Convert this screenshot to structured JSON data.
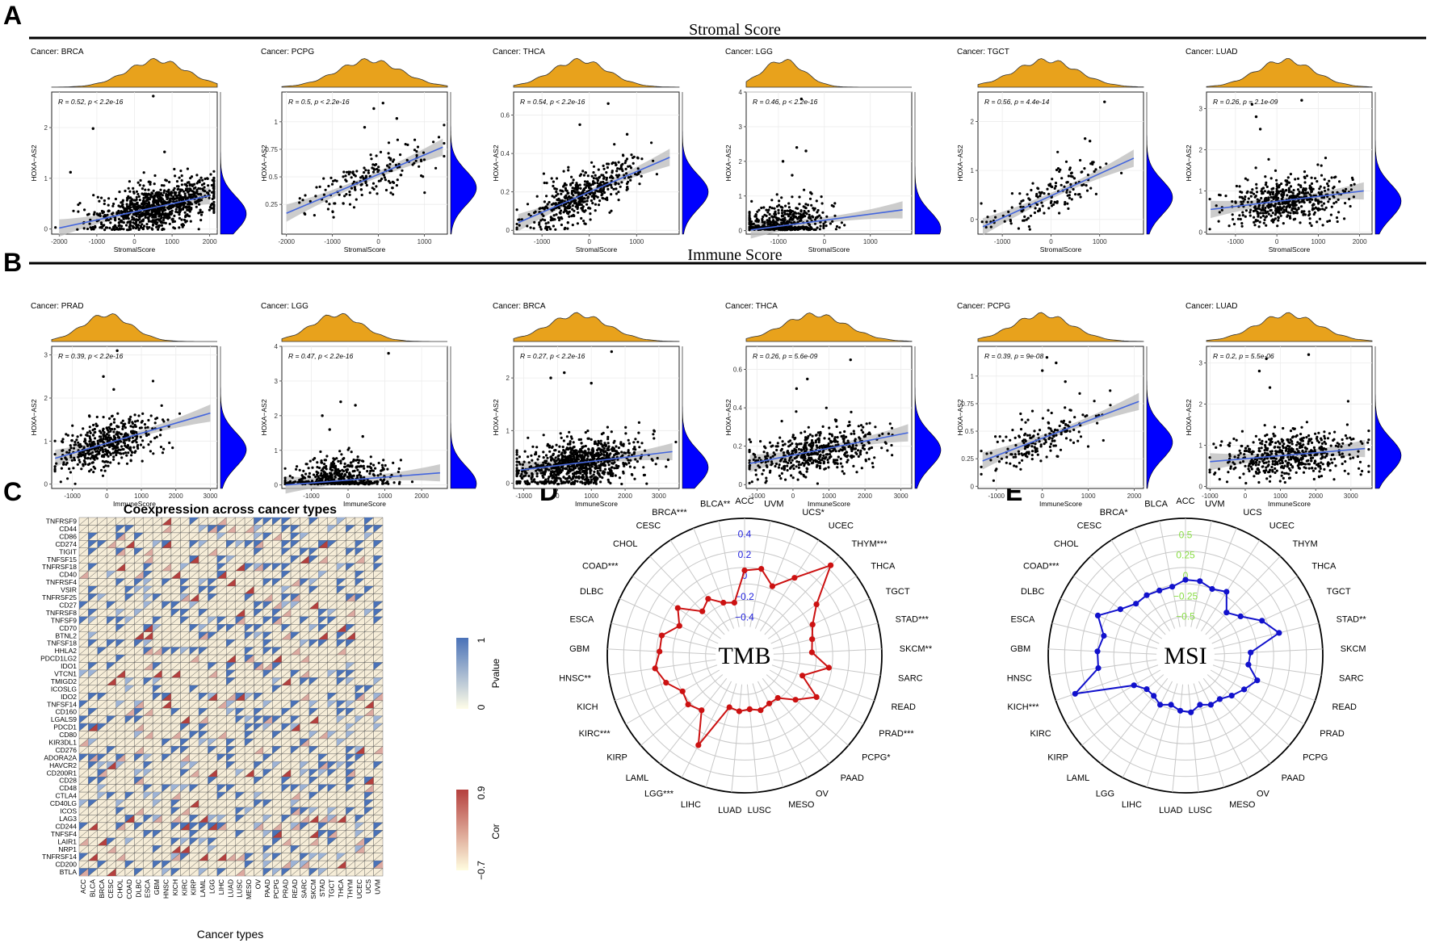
{
  "panels": {
    "a": "A",
    "b": "B",
    "c": "C",
    "d": "D",
    "e": "E"
  },
  "section_a_title": "Stromal Score",
  "section_b_title": "Immune Score",
  "colors": {
    "density_top": "#E8A21C",
    "density_side": "#0000FF",
    "fit_line": "#4466DD",
    "ci_band": "#BBBBBB",
    "tmb_line": "#CC1111",
    "msi_line": "#1111CC",
    "tmb_radial": "#2222DD",
    "msi_radial": "#88DD44",
    "heat_blue": "#4A72B8",
    "heat_red": "#B5403E",
    "heat_cream": "#F6EDD8"
  },
  "chart_data": [
    {
      "type": "scatter",
      "id": "a1",
      "section": "Stromal Score",
      "cancer": "Cancer: BRCA",
      "stat": "R = 0.52, p < 2.2e-16",
      "xlabel": "StromalScore",
      "ylabel": "HOXA−AS2",
      "xlim": [
        -2200,
        2200
      ],
      "ylim": [
        -0.1,
        2.7
      ],
      "xticks": [
        -2000,
        -1000,
        0,
        1000,
        2000
      ],
      "yticks": [
        0,
        1,
        2
      ],
      "fit": [
        [
          -2000,
          0.02
        ],
        [
          2000,
          0.66
        ]
      ],
      "npoints": 950,
      "cx": 600,
      "sx": 800,
      "cy": 0.3,
      "outliers": [
        [
          500,
          2.62
        ],
        [
          -1100,
          1.98
        ],
        [
          800,
          1.52
        ],
        [
          -1700,
          1.12
        ]
      ]
    },
    {
      "type": "scatter",
      "id": "a2",
      "section": "Stromal Score",
      "cancer": "Cancer: PCPG",
      "stat": "R = 0.5, p < 2.2e-16",
      "xlabel": "StromalScore",
      "ylabel": "HOXA−AS2",
      "xlim": [
        -2100,
        1500
      ],
      "ylim": [
        -0.02,
        1.27
      ],
      "xticks": [
        -2000,
        -1000,
        0,
        1000
      ],
      "yticks": [
        0.25,
        0.5,
        0.75,
        1.0
      ],
      "fit": [
        [
          -2000,
          0.17
        ],
        [
          1400,
          0.77
        ]
      ],
      "npoints": 180,
      "cx": -200,
      "sx": 700,
      "cy": 0.4,
      "outliers": [
        [
          100,
          1.17
        ],
        [
          -100,
          1.12
        ],
        [
          400,
          1.03
        ],
        [
          -300,
          0.95
        ]
      ]
    },
    {
      "type": "scatter",
      "id": "a3",
      "section": "Stromal Score",
      "cancer": "Cancer: THCA",
      "stat": "R = 0.54, p < 2.2e-16",
      "xlabel": "StromalScore",
      "ylabel": "HOXA−AS2",
      "xlim": [
        -1600,
        1900
      ],
      "ylim": [
        -0.02,
        0.72
      ],
      "xticks": [
        -1000,
        0,
        1000
      ],
      "yticks": [
        0,
        0.2,
        0.4,
        0.6
      ],
      "fit": [
        [
          -1500,
          0.04
        ],
        [
          1700,
          0.38
        ]
      ],
      "npoints": 500,
      "cx": -200,
      "sx": 600,
      "cy": 0.2,
      "outliers": [
        [
          400,
          0.66
        ],
        [
          -200,
          0.55
        ],
        [
          800,
          0.5
        ]
      ]
    },
    {
      "type": "scatter",
      "id": "a4",
      "section": "Stromal Score",
      "cancer": "Cancer: LGG",
      "stat": "R = 0.46, p < 2.2e-16",
      "xlabel": "StromalScore",
      "ylabel": "HOXA−AS2",
      "xlim": [
        -1700,
        1900
      ],
      "ylim": [
        -0.1,
        4.0
      ],
      "xticks": [
        -1000,
        0,
        1000
      ],
      "yticks": [
        0,
        1,
        2,
        3,
        4
      ],
      "fit": [
        [
          -1600,
          0.02
        ],
        [
          1700,
          0.6
        ]
      ],
      "npoints": 520,
      "cx": -900,
      "sx": 450,
      "cy": 0.05,
      "outliers": [
        [
          -500,
          3.8
        ],
        [
          -600,
          2.4
        ],
        [
          -400,
          2.3
        ],
        [
          -900,
          2.0
        ],
        [
          -700,
          1.6
        ],
        [
          -300,
          1.1
        ]
      ]
    },
    {
      "type": "scatter",
      "id": "a5",
      "section": "Stromal Score",
      "cancer": "Cancer: TGCT",
      "stat": "R = 0.56, p = 4.4e-14",
      "xlabel": "StromalScore",
      "ylabel": "HOXA−AS2",
      "xlim": [
        -1500,
        1900
      ],
      "ylim": [
        -0.3,
        2.6
      ],
      "xticks": [
        -1000,
        0,
        1000
      ],
      "yticks": [
        0,
        1,
        2
      ],
      "fit": [
        [
          -1400,
          -0.15
        ],
        [
          1700,
          1.25
        ]
      ],
      "npoints": 150,
      "cx": -100,
      "sx": 650,
      "cy": 0.45,
      "outliers": [
        [
          1100,
          2.4
        ],
        [
          700,
          1.65
        ],
        [
          800,
          1.6
        ]
      ]
    },
    {
      "type": "scatter",
      "id": "a6",
      "section": "Stromal Score",
      "cancer": "Cancer: LUAD",
      "stat": "R = 0.26, p = 2.1e-09",
      "xlabel": "StromalScore",
      "ylabel": "HOXA−AS2",
      "xlim": [
        -1700,
        2300
      ],
      "ylim": [
        -0.05,
        3.4
      ],
      "xticks": [
        -1000,
        0,
        1000,
        2000
      ],
      "yticks": [
        0,
        1,
        2,
        3
      ],
      "fit": [
        [
          -1600,
          0.55
        ],
        [
          2100,
          1.0
        ]
      ],
      "npoints": 520,
      "cx": 200,
      "sx": 700,
      "cy": 0.75,
      "outliers": [
        [
          -600,
          3.1
        ],
        [
          600,
          3.2
        ],
        [
          -500,
          2.8
        ],
        [
          -400,
          2.5
        ]
      ]
    },
    {
      "type": "scatter",
      "id": "b1",
      "section": "Immune Score",
      "cancer": "Cancer: PRAD",
      "stat": "R = 0.39, p < 2.2e-16",
      "xlabel": "ImmuneScore",
      "ylabel": "HOXA−AS2",
      "xlim": [
        -1600,
        3200
      ],
      "ylim": [
        -0.1,
        3.2
      ],
      "xticks": [
        -1000,
        0,
        1000,
        2000,
        3000
      ],
      "yticks": [
        0,
        1,
        2,
        3
      ],
      "fit": [
        [
          -1500,
          0.6
        ],
        [
          3000,
          1.65
        ]
      ],
      "npoints": 480,
      "cx": 0,
      "sx": 700,
      "cy": 0.8,
      "outliers": [
        [
          300,
          3.1
        ],
        [
          -100,
          2.5
        ],
        [
          200,
          2.2
        ]
      ]
    },
    {
      "type": "scatter",
      "id": "b2",
      "section": "Immune Score",
      "cancer": "Cancer: LGG",
      "stat": "R = 0.47, p < 2.2e-16",
      "xlabel": "ImmuneScore",
      "ylabel": "HOXA−AS2",
      "xlim": [
        -1800,
        2700
      ],
      "ylim": [
        -0.1,
        4.0
      ],
      "xticks": [
        -1000,
        0,
        1000,
        2000
      ],
      "yticks": [
        0,
        1,
        2,
        3,
        4
      ],
      "fit": [
        [
          -1700,
          0.0
        ],
        [
          2500,
          0.35
        ]
      ],
      "npoints": 520,
      "cx": -300,
      "sx": 700,
      "cy": 0.04,
      "outliers": [
        [
          1100,
          3.8
        ],
        [
          -200,
          2.4
        ],
        [
          200,
          2.3
        ],
        [
          -700,
          2.0
        ],
        [
          -500,
          1.6
        ],
        [
          400,
          1.4
        ]
      ]
    },
    {
      "type": "scatter",
      "id": "b3",
      "section": "Immune Score",
      "cancer": "Cancer: BRCA",
      "stat": "R = 0.27, p < 2.2e-16",
      "xlabel": "ImmuneScore",
      "ylabel": "HOXA−AS2",
      "xlim": [
        -1300,
        3600
      ],
      "ylim": [
        -0.1,
        2.6
      ],
      "xticks": [
        -1000,
        0,
        1000,
        2000,
        3000
      ],
      "yticks": [
        0,
        1,
        2
      ],
      "fit": [
        [
          -1100,
          0.25
        ],
        [
          3400,
          0.6
        ]
      ],
      "npoints": 950,
      "cx": 600,
      "sx": 900,
      "cy": 0.3,
      "outliers": [
        [
          1600,
          2.5
        ],
        [
          200,
          2.1
        ],
        [
          -200,
          2.0
        ],
        [
          1000,
          1.9
        ]
      ]
    },
    {
      "type": "scatter",
      "id": "b4",
      "section": "Immune Score",
      "cancer": "Cancer: THCA",
      "stat": "R = 0.26, p = 5.6e-09",
      "xlabel": "ImmuneScore",
      "ylabel": "HOXA−AS2",
      "xlim": [
        -1300,
        3300
      ],
      "ylim": [
        -0.02,
        0.72
      ],
      "xticks": [
        -1000,
        0,
        1000,
        2000,
        3000
      ],
      "yticks": [
        0,
        0.2,
        0.4,
        0.6
      ],
      "fit": [
        [
          -1200,
          0.11
        ],
        [
          3200,
          0.27
        ]
      ],
      "npoints": 500,
      "cx": 600,
      "sx": 900,
      "cy": 0.18,
      "outliers": [
        [
          1600,
          0.65
        ],
        [
          400,
          0.55
        ],
        [
          100,
          0.5
        ]
      ]
    },
    {
      "type": "scatter",
      "id": "b5",
      "section": "Immune Score",
      "cancer": "Cancer: PCPG",
      "stat": "R = 0.39, p = 9e-08",
      "xlabel": "ImmuneScore",
      "ylabel": "HOXA−AS2",
      "xlim": [
        -1400,
        2200
      ],
      "ylim": [
        -0.02,
        1.27
      ],
      "xticks": [
        -1000,
        0,
        1000,
        2000
      ],
      "yticks": [
        0.0,
        0.25,
        0.5,
        0.75,
        1.0
      ],
      "fit": [
        [
          -1300,
          0.23
        ],
        [
          2100,
          0.77
        ]
      ],
      "npoints": 180,
      "cx": 0,
      "sx": 650,
      "cy": 0.4,
      "outliers": [
        [
          100,
          1.17
        ],
        [
          300,
          1.12
        ],
        [
          0,
          1.05
        ],
        [
          500,
          0.95
        ]
      ]
    },
    {
      "type": "scatter",
      "id": "b6",
      "section": "Immune Score",
      "cancer": "Cancer: LUAD",
      "stat": "R = 0.2, p = 5.5e-06",
      "xlabel": "ImmuneScore",
      "ylabel": "HOXA−AS2",
      "xlim": [
        -1100,
        3600
      ],
      "ylim": [
        -0.05,
        3.4
      ],
      "xticks": [
        -1000,
        0,
        1000,
        2000,
        3000
      ],
      "yticks": [
        0,
        1,
        2,
        3
      ],
      "fit": [
        [
          -1000,
          0.6
        ],
        [
          3400,
          0.92
        ]
      ],
      "npoints": 520,
      "cx": 1200,
      "sx": 900,
      "cy": 0.75,
      "outliers": [
        [
          600,
          3.1
        ],
        [
          1800,
          3.2
        ],
        [
          400,
          2.8
        ],
        [
          700,
          2.4
        ]
      ]
    },
    {
      "type": "heatmap",
      "id": "c",
      "title": "Coexpression across cancer types",
      "xlabel": "Cancer types",
      "rows": [
        "TNFRSF9",
        "CD44",
        "CD86",
        "CD274",
        "TIGIT",
        "TNFSF15",
        "TNFRSF18",
        "CD40",
        "TNFRSF4",
        "VSIR",
        "TNFRSF25",
        "CD27",
        "TNFRSF8",
        "TNFSF9",
        "CD70",
        "BTNL2",
        "TNFSF18",
        "HHLA2",
        "PDCD1LG2",
        "IDO1",
        "VTCN1",
        "TMIGD2",
        "ICOSLG",
        "IDO2",
        "TNFSF14",
        "CD160",
        "LGALS9",
        "PDCD1",
        "CD80",
        "KIR3DL1",
        "CD276",
        "ADORA2A",
        "HAVCR2",
        "CD200R1",
        "CD28",
        "CD48",
        "CTLA4",
        "CD40LG",
        "ICOS",
        "LAG3",
        "CD244",
        "TNFSF4",
        "LAIR1",
        "NRP1",
        "TNFRSF14",
        "CD200",
        "BTLA"
      ],
      "cols": [
        "ACC",
        "BLCA",
        "BRCA",
        "CESC",
        "CHOL",
        "COAD",
        "DLBC",
        "ESCA",
        "GBM",
        "HNSC",
        "KICH",
        "KIRC",
        "KIRP",
        "LAML",
        "LGG",
        "LIHC",
        "LUAD",
        "LUSC",
        "MESO",
        "OV",
        "PAAD",
        "PCPG",
        "PRAD",
        "READ",
        "SARC",
        "SKCM",
        "STAD",
        "TGCT",
        "THCA",
        "THYM",
        "UCEC",
        "UCS",
        "UVM"
      ],
      "legend_pvalue": {
        "title": "Pvalue",
        "ticks": [
          "1",
          "0"
        ]
      },
      "legend_cor": {
        "title": "Cor",
        "ticks": [
          "0.9",
          "−0.7"
        ]
      }
    },
    {
      "type": "radar",
      "id": "d",
      "center_label": "TMB",
      "radial_ticks": [
        "0.4",
        "0.2",
        "0",
        "−0.2",
        "−0.4"
      ],
      "rmin": -0.55,
      "rmax": 0.55,
      "categories": [
        "ACC",
        "UVM",
        "UCS*",
        "UCEC",
        "THYM***",
        "THCA",
        "TGCT",
        "STAD***",
        "SKCM**",
        "SARC",
        "READ",
        "PRAD***",
        "PCPG*",
        "PAAD",
        "OV",
        "MESO",
        "LUSC",
        "LUAD",
        "LIHC",
        "LGG***",
        "LAML",
        "KIRP",
        "KIRC***",
        "KICH",
        "HNSC**",
        "GBM",
        "ESCA",
        "DLBC",
        "COAD***",
        "CHOL",
        "CESC",
        "BRCA***",
        "BLCA**"
      ],
      "values": [
        0.05,
        0.08,
        -0.05,
        0.12,
        0.43,
        0.08,
        -0.05,
        -0.1,
        -0.12,
        0.05,
        -0.18,
        0.03,
        -0.12,
        -0.25,
        -0.25,
        -0.22,
        -0.25,
        -0.23,
        -0.25,
        0.2,
        -0.1,
        -0.05,
        -0.08,
        0.03,
        0.1,
        0.05,
        0.05,
        -0.08,
        0.02,
        -0.18,
        -0.12,
        -0.22,
        -0.25
      ]
    },
    {
      "type": "radar",
      "id": "e",
      "center_label": "MSI",
      "radial_ticks": [
        "0.5",
        "0.25",
        "0",
        "−0.25",
        "−0.5"
      ],
      "rmin": -0.7,
      "rmax": 0.7,
      "categories": [
        "ACC",
        "UVM",
        "UCS",
        "UCEC",
        "THYM",
        "THCA",
        "TGCT",
        "STAD**",
        "SKCM",
        "SARC",
        "READ",
        "PRAD",
        "PCPG",
        "PAAD",
        "OV",
        "MESO",
        "LUSC",
        "LUAD",
        "LIHC",
        "LGG",
        "LAML",
        "KIRP",
        "KIRC",
        "KICH***",
        "HNSC",
        "GBM",
        "ESCA",
        "DLBC",
        "COAD***",
        "CHOL",
        "CESC",
        "BRCA*",
        "BLCA"
      ],
      "values": [
        -0.05,
        -0.05,
        -0.1,
        -0.05,
        -0.25,
        -0.15,
        0.05,
        0.2,
        -0.18,
        -0.2,
        -0.05,
        -0.15,
        -0.23,
        -0.3,
        -0.3,
        -0.35,
        -0.28,
        -0.3,
        -0.35,
        -0.3,
        -0.35,
        -0.35,
        -0.25,
        0.45,
        0.1,
        0.1,
        0.05,
        0.2,
        0.0,
        -0.1,
        -0.1,
        -0.12,
        -0.12
      ]
    }
  ]
}
